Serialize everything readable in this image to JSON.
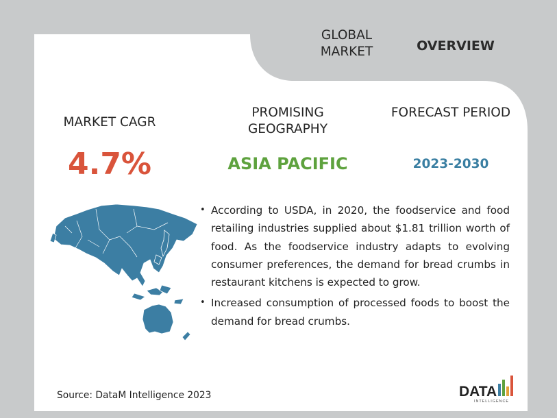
{
  "header": {
    "global_market": "GLOBAL MARKET",
    "overview": "OVERVIEW"
  },
  "stats": {
    "cagr_label": "MARKET CAGR",
    "cagr_value": "4.7%",
    "geo_label": "PROMISING GEOGRAPHY",
    "geo_value": "ASIA PACIFIC",
    "forecast_label": "FORECAST PERIOD",
    "forecast_value": "2023-2030"
  },
  "bullets": [
    "According to USDA, in 2020, the foodservice and food retailing industries supplied about $1.81 trillion worth of food. As the foodservice industry adapts to evolving consumer preferences, the demand for bread crumbs in restaurant kitchens is expected to grow.",
    "Increased consumption of processed foods to boost the demand for bread crumbs."
  ],
  "source": "Source: DataM Intelligence 2023",
  "logo": {
    "word": "DATA",
    "sub": "INTELLIGENCE"
  },
  "colors": {
    "border": "#c8cacb",
    "cagr": "#d9543b",
    "geo": "#5ea23e",
    "forecast": "#3a7fa2",
    "map": "#3c7ea3"
  },
  "map_region": "Asia Pacific map"
}
